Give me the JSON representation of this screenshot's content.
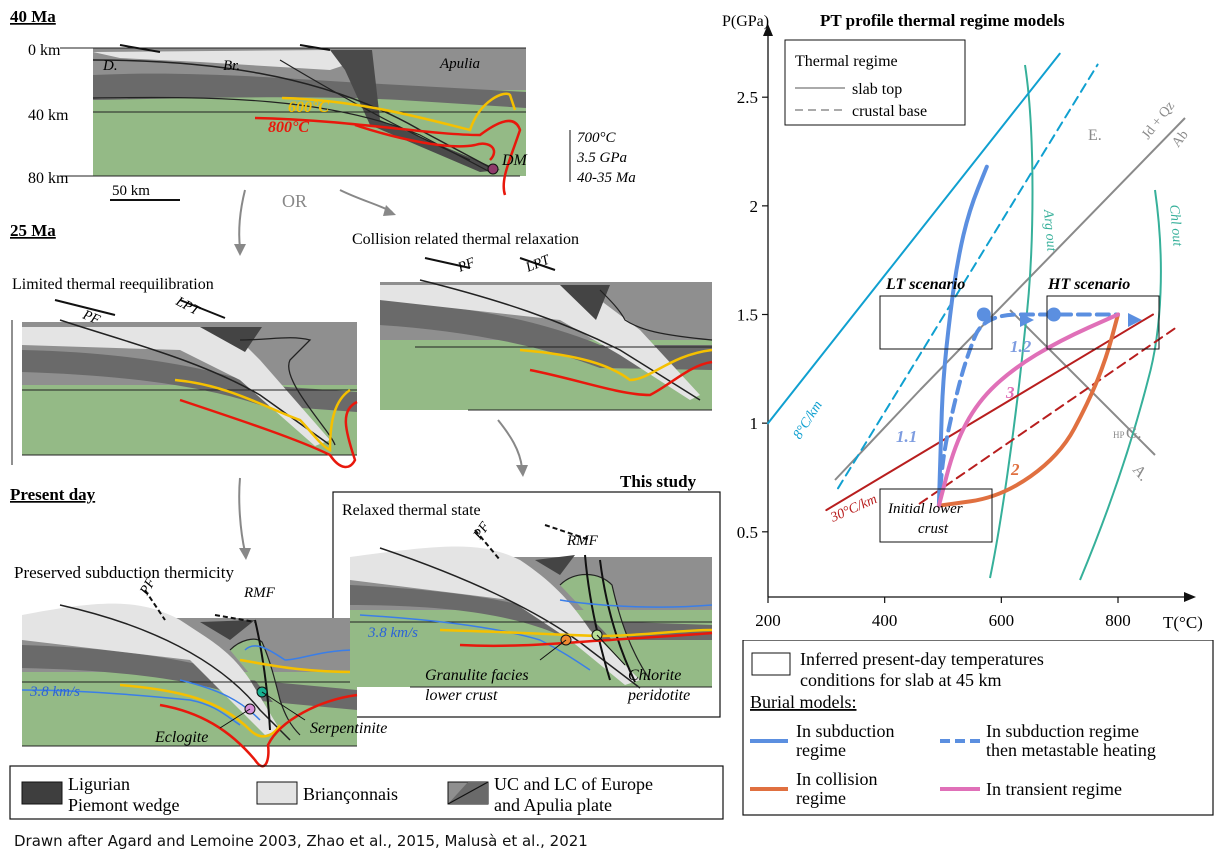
{
  "left_panel": {
    "stage_40ma": {
      "title": "40 Ma",
      "depths": [
        "0 km",
        "40 km",
        "80 km"
      ],
      "scale": "50 km",
      "labels": {
        "d": "D.",
        "br": "Br.",
        "apulia": "Apulia",
        "iso600": "600°C",
        "iso800": "800°C",
        "dm": "DM"
      },
      "dm_conditions": [
        "700°C",
        "3.5 GPa",
        "40-35 Ma"
      ]
    },
    "or_text": "OR",
    "stage_25ma": {
      "title": "25 Ma",
      "limited": {
        "title": "Limited thermal reequilibration",
        "pf": "PF",
        "lpt": "LPT"
      },
      "collision": {
        "title": "Collision related thermal relaxation",
        "pf": "PF",
        "lpt": "LPT"
      }
    },
    "present": {
      "title": "Present day",
      "this_study": "This study",
      "preserved": {
        "title": "Preserved subduction thermicity",
        "pf": "PF",
        "rmf": "RMF",
        "velocity": "3.8 km/s",
        "eclogite": "Eclogite",
        "serpentinite": "Serpentinite"
      },
      "relaxed": {
        "title": "Relaxed thermal state",
        "pf": "PF",
        "rmf": "RMF",
        "velocity": "3.8 km/s",
        "granulite_1": "Granulite facies",
        "granulite_2": "lower crust",
        "chlorite_1": "Chlorite",
        "chlorite_2": "peridotite"
      }
    },
    "legend": {
      "ligurian_1": "Ligurian",
      "ligurian_2": "Piemont wedge",
      "brianconnais": "Briançonnais",
      "uc_1": "UC and LC of Europe",
      "uc_2": "and Apulia plate"
    },
    "credit": "Drawn after Agard and Lemoine 2003, Zhao et al., 2015, Malusà et al., 2021"
  },
  "right_panel": {
    "title": "PT profile thermal regime models",
    "y_axis_label": "P(GPa)",
    "x_axis_label": "T(°C)",
    "y_ticks": [
      "0.5",
      "1",
      "1.5",
      "2",
      "2.5"
    ],
    "x_ticks": [
      "200",
      "400",
      "600",
      "800"
    ],
    "legend": {
      "title": "Thermal regime",
      "slab_top": "slab top",
      "crustal_base": "crustal base"
    },
    "labels": {
      "lt_scenario": "LT scenario",
      "ht_scenario": "HT scenario",
      "e": "E.",
      "jd_qz": "Jd + Qz",
      "ab": "Ab",
      "arg_out": "Arg out",
      "chl_out": "Chl out",
      "grad8": "8°C/km",
      "grad30": "30°C/km",
      "hp": "HP",
      "g": "G.",
      "a": "A.",
      "init_1": "Initial lower",
      "init_2": "crust",
      "p11": "1.1",
      "p12": "1.2",
      "p2": "2",
      "p3": "3"
    },
    "bottom_legend": {
      "box_1": "Inferred present-day temperatures",
      "box_2": "conditions for slab at 45 km",
      "burial": "Burial models:",
      "sub_1": "In subduction",
      "sub_2": "regime",
      "meta_1": "In subduction regime",
      "meta_2": "then metastable heating",
      "col_1": "In collision",
      "col_2": "regime",
      "trans": "In transient regime"
    }
  },
  "chart_data": {
    "type": "line",
    "title": "PT profile thermal regime models",
    "xlabel": "T(°C)",
    "ylabel": "P(GPa)",
    "xlim": [
      200,
      920
    ],
    "ylim": [
      0.2,
      2.8
    ],
    "x_ticks": [
      200,
      400,
      600,
      800
    ],
    "y_ticks": [
      0.5,
      1,
      1.5,
      2,
      2.5
    ],
    "series": [
      {
        "name": "8°C/km",
        "style": "solid",
        "color": "#10a0d0",
        "x": [
          200,
          700
        ],
        "y": [
          1.0,
          2.7
        ]
      },
      {
        "name": "crustal base",
        "style": "dashed",
        "color": "#10a0d0",
        "x": [
          320,
          765
        ],
        "y": [
          0.7,
          2.65
        ]
      },
      {
        "name": "30°C/km",
        "style": "solid",
        "color": "#b81e1e",
        "x": [
          300,
          860
        ],
        "y": [
          0.6,
          1.5
        ]
      },
      {
        "name": "crustal base",
        "style": "dashed",
        "color": "#b81e1e",
        "x": [
          460,
          905
        ],
        "y": [
          0.63,
          1.45
        ]
      },
      {
        "name": "In subduction regime",
        "style": "solid",
        "color": "#5b8fe0",
        "x": [
          493,
          496,
          500,
          512,
          525,
          545,
          575
        ],
        "y": [
          0.62,
          0.9,
          1.2,
          1.5,
          1.75,
          1.98,
          2.18
        ]
      },
      {
        "name": "In subduction regime then metastable heating",
        "style": "dashed",
        "color": "#5b8fe0",
        "x": [
          493,
          500,
          520,
          540,
          570,
          690,
          800
        ],
        "y": [
          0.62,
          0.85,
          1.1,
          1.3,
          1.5,
          1.5,
          1.5
        ]
      },
      {
        "name": "In collision regime",
        "style": "solid",
        "color": "#e07040",
        "x": [
          493,
          600,
          700,
          750,
          780,
          800
        ],
        "y": [
          0.62,
          0.66,
          0.85,
          1.1,
          1.3,
          1.5
        ]
      },
      {
        "name": "In transient regime",
        "style": "solid",
        "color": "#e070b8",
        "x": [
          493,
          520,
          560,
          620,
          700,
          800
        ],
        "y": [
          0.62,
          0.9,
          1.1,
          1.25,
          1.38,
          1.5
        ]
      }
    ],
    "points": [
      {
        "x": 570,
        "y": 1.5,
        "color": "#5b8fe0"
      },
      {
        "x": 690,
        "y": 1.5,
        "color": "#5b8fe0"
      }
    ]
  }
}
